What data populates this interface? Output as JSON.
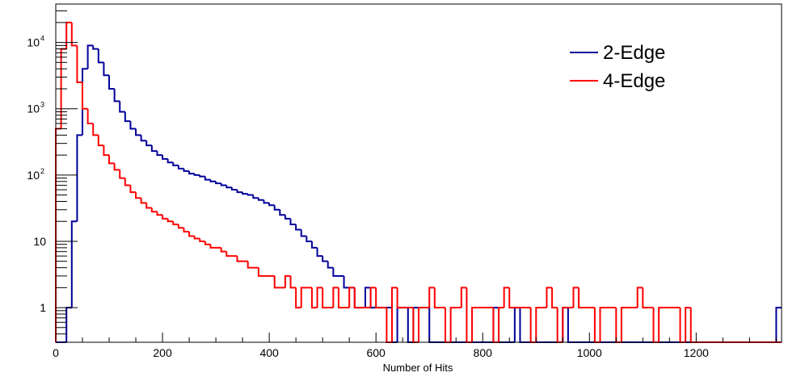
{
  "chart_data": {
    "type": "line",
    "style": "step-histogram",
    "title": "",
    "xlabel": "Number of Hits",
    "ylabel": "",
    "xlim": [
      0,
      1360
    ],
    "ylim": [
      0.3,
      38000
    ],
    "yscale": "log",
    "grid": false,
    "legend_position": "top-right",
    "x_ticks": [
      {
        "value": 0,
        "label": "0"
      },
      {
        "value": 200,
        "label": "200"
      },
      {
        "value": 400,
        "label": "400"
      },
      {
        "value": 600,
        "label": "600"
      },
      {
        "value": 800,
        "label": "800"
      },
      {
        "value": 1000,
        "label": "1000"
      },
      {
        "value": 1200,
        "label": "1200"
      }
    ],
    "y_ticks": [
      {
        "value": 1,
        "base": "1",
        "exp": ""
      },
      {
        "value": 10,
        "base": "10",
        "exp": ""
      },
      {
        "value": 100,
        "base": "10",
        "exp": "2"
      },
      {
        "value": 1000,
        "base": "10",
        "exp": "3"
      },
      {
        "value": 10000,
        "base": "10",
        "exp": "4"
      }
    ],
    "bin_width": 10,
    "series": [
      {
        "name": "2-Edge",
        "color": "#00009a",
        "x_start": 0,
        "values": [
          0,
          0,
          1,
          20,
          400,
          4000,
          9000,
          8000,
          5000,
          3200,
          2000,
          1300,
          900,
          650,
          500,
          400,
          330,
          280,
          230,
          200,
          175,
          155,
          140,
          125,
          115,
          105,
          100,
          95,
          85,
          80,
          75,
          70,
          65,
          60,
          55,
          52,
          50,
          45,
          42,
          38,
          35,
          30,
          25,
          22,
          18,
          15,
          12,
          10,
          8,
          6,
          5,
          4,
          3,
          3,
          2,
          2,
          1,
          1,
          2,
          1,
          1,
          1,
          1,
          0,
          1,
          1,
          0,
          1,
          1,
          1,
          0,
          0,
          0,
          0,
          0,
          0,
          0,
          0,
          0,
          0,
          0,
          0,
          1,
          0,
          0,
          0,
          1,
          0,
          0,
          0,
          0,
          0,
          0,
          0,
          0,
          1,
          0,
          0,
          0,
          0,
          0,
          0,
          0,
          0,
          0,
          0,
          0,
          0,
          0,
          0,
          0,
          0,
          0,
          0,
          0,
          0,
          0,
          0,
          0,
          0,
          0,
          0,
          0,
          0,
          0,
          0,
          0,
          0,
          0,
          0,
          0,
          0,
          0,
          0,
          0,
          1
        ]
      },
      {
        "name": "4-Edge",
        "color": "#ff0000",
        "x_start": 0,
        "values": [
          500,
          8000,
          20000,
          9000,
          2500,
          1000,
          600,
          400,
          280,
          200,
          150,
          120,
          90,
          70,
          55,
          45,
          38,
          32,
          28,
          25,
          22,
          20,
          18,
          16,
          14,
          12,
          11,
          10,
          9,
          8,
          8,
          7,
          6,
          6,
          5,
          5,
          4,
          4,
          3,
          3,
          3,
          2,
          2,
          3,
          2,
          1,
          2,
          2,
          1,
          2,
          1,
          1,
          2,
          1,
          1,
          2,
          1,
          1,
          1,
          2,
          1,
          1,
          0,
          2,
          1,
          1,
          1,
          0,
          1,
          1,
          2,
          1,
          1,
          0,
          1,
          1,
          2,
          0,
          1,
          1,
          1,
          1,
          0,
          1,
          2,
          1,
          1,
          1,
          1,
          0,
          1,
          1,
          2,
          1,
          0,
          1,
          1,
          2,
          1,
          1,
          1,
          0,
          1,
          1,
          1,
          0,
          1,
          1,
          1,
          2,
          1,
          1,
          0,
          1,
          1,
          1,
          1,
          0,
          1,
          0,
          0,
          0,
          0,
          0,
          0,
          0,
          0,
          0,
          0,
          0,
          0,
          0,
          0,
          0,
          0,
          0
        ]
      }
    ]
  }
}
